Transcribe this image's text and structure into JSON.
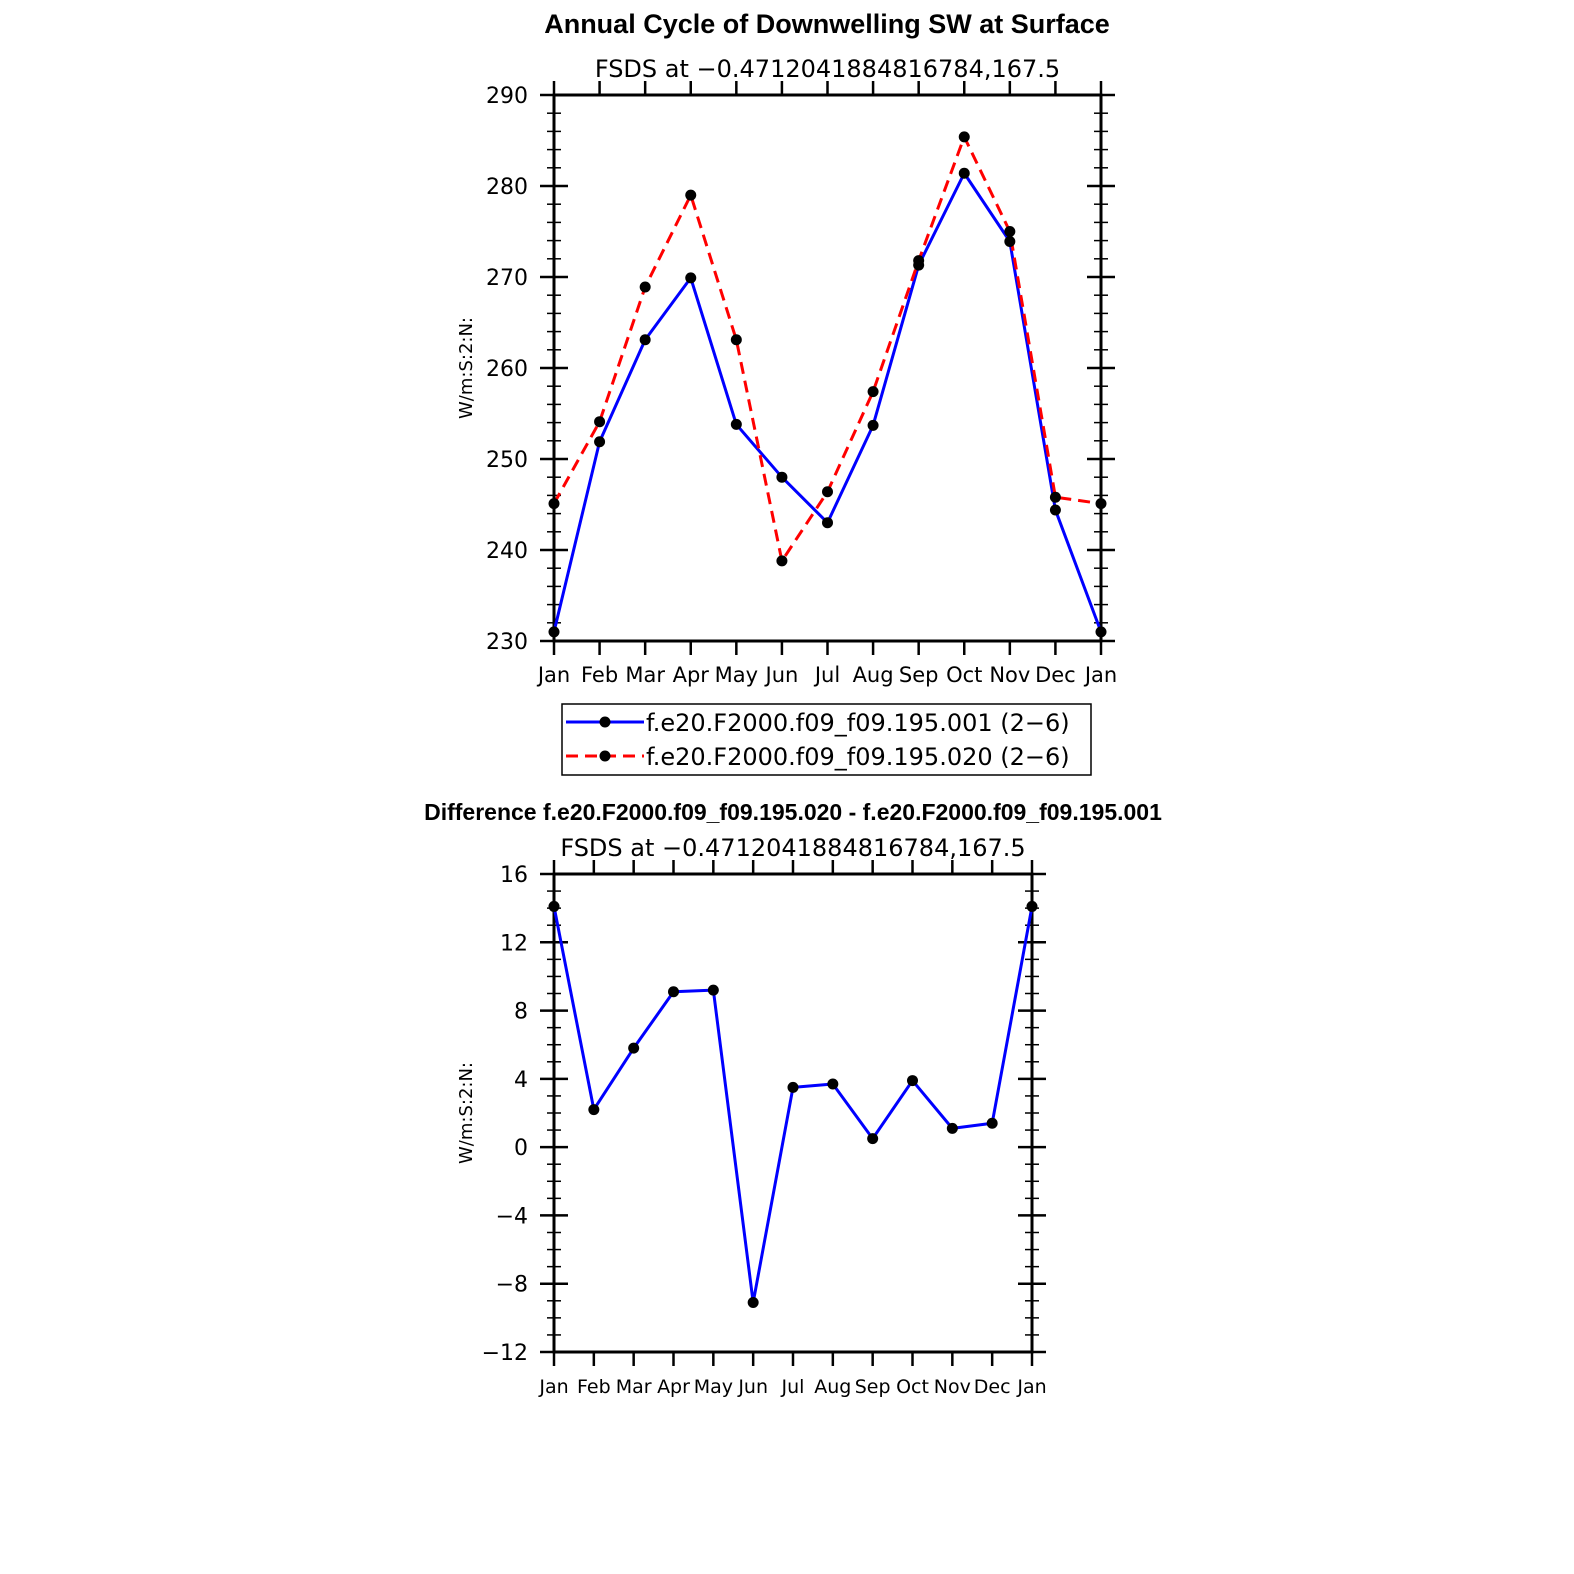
{
  "chart_data": [
    {
      "type": "line",
      "title": "Annual Cycle of Downwelling SW at Surface",
      "subtitle": "FSDS at −0.4712041884816784,167.5",
      "xlabel": "",
      "ylabel": "W/m:S:2:N:",
      "categories": [
        "Jan",
        "Feb",
        "Mar",
        "Apr",
        "May",
        "Jun",
        "Jul",
        "Aug",
        "Sep",
        "Oct",
        "Nov",
        "Dec",
        "Jan"
      ],
      "ylim": [
        230,
        290
      ],
      "yticks": [
        230,
        240,
        250,
        260,
        270,
        280,
        290
      ],
      "legend_position": "bottom",
      "series": [
        {
          "name": "f.e20.F2000.f09_f09.195.001 (2−6)",
          "color": "#0000ff",
          "dash": "solid",
          "values": [
            231.0,
            251.9,
            263.1,
            269.9,
            253.8,
            248.0,
            243.0,
            253.7,
            271.3,
            281.4,
            273.9,
            244.4,
            231.0
          ]
        },
        {
          "name": "f.e20.F2000.f09_f09.195.020 (2−6)",
          "color": "#ff0000",
          "dash": "dashed",
          "values": [
            245.1,
            254.1,
            268.9,
            279.0,
            263.1,
            238.8,
            246.4,
            257.4,
            271.8,
            285.4,
            275.0,
            245.8,
            245.1
          ]
        }
      ]
    },
    {
      "type": "line",
      "title": "Difference f.e20.F2000.f09_f09.195.020 - f.e20.F2000.f09_f09.195.001",
      "subtitle": "FSDS at −0.4712041884816784,167.5",
      "xlabel": "",
      "ylabel": "W/m:S:2:N:",
      "categories": [
        "Jan",
        "Feb",
        "Mar",
        "Apr",
        "May",
        "Jun",
        "Jul",
        "Aug",
        "Sep",
        "Oct",
        "Nov",
        "Dec",
        "Jan"
      ],
      "ylim": [
        -12,
        16
      ],
      "yticks": [
        -12,
        -8,
        -4,
        0,
        4,
        8,
        12,
        16
      ],
      "series": [
        {
          "color": "#0000ff",
          "dash": "solid",
          "values": [
            14.1,
            2.2,
            5.8,
            9.1,
            9.2,
            -9.1,
            3.5,
            3.7,
            0.5,
            3.9,
            1.1,
            1.4,
            14.1
          ]
        }
      ]
    }
  ]
}
